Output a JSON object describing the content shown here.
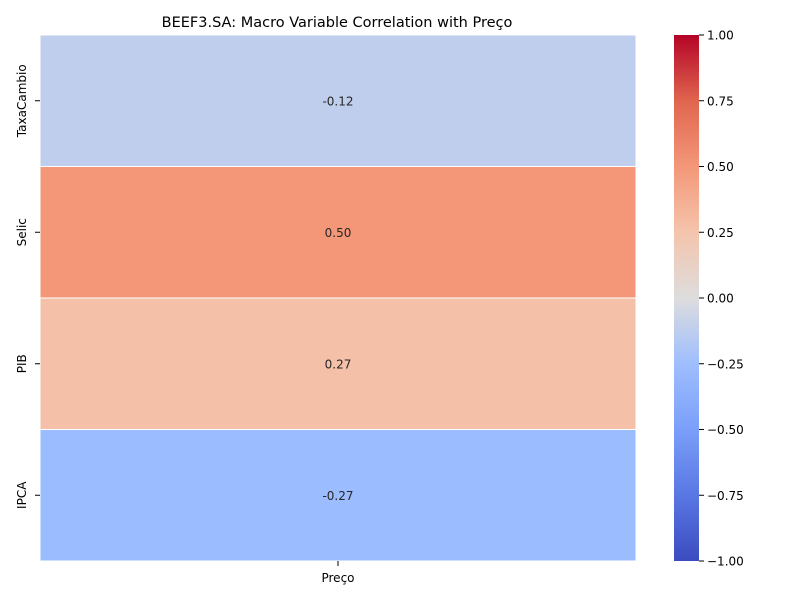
{
  "chart_data": {
    "type": "heatmap",
    "title": "BEEF3.SA: Macro Variable Correlation with Preço",
    "rows": [
      "TaxaCambio",
      "Selic",
      "PIB",
      "IPCA"
    ],
    "columns": [
      "Preço"
    ],
    "values": [
      [
        -0.12
      ],
      [
        0.5
      ],
      [
        0.27
      ],
      [
        -0.27
      ]
    ],
    "annotations": [
      "-0.12",
      "0.50",
      "0.27",
      "-0.27"
    ],
    "colormap": "coolwarm",
    "vmin": -1.0,
    "vmax": 1.0,
    "colorbar": {
      "ticks": [
        1.0,
        0.75,
        0.5,
        0.25,
        0.0,
        -0.25,
        -0.5,
        -0.75,
        -1.0
      ],
      "tick_labels": [
        "1.00",
        "0.75",
        "0.50",
        "0.25",
        "0.00",
        "−0.25",
        "−0.50",
        "−0.75",
        "−1.00"
      ]
    },
    "colors": {
      "low": "#3b4cc0",
      "mid": "#dddddd",
      "high": "#b40426"
    }
  }
}
